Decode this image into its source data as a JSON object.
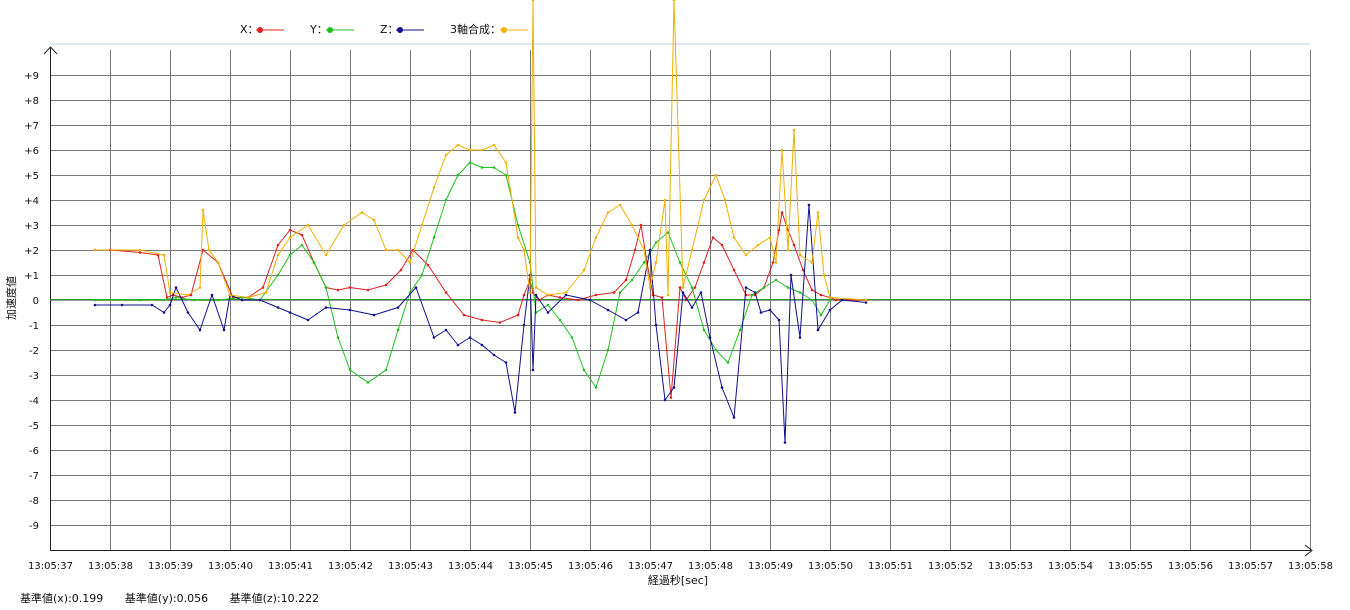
{
  "chart_data": {
    "type": "line",
    "xlabel": "経過秒[sec]",
    "ylabel": "加速度値",
    "x_tick_labels": [
      "13:05:37",
      "13:05:38",
      "13:05:39",
      "13:05:40",
      "13:05:41",
      "13:05:42",
      "13:05:43",
      "13:05:44",
      "13:05:45",
      "13:05:46",
      "13:05:47",
      "13:05:48",
      "13:05:49",
      "13:05:50",
      "13:05:51",
      "13:05:52",
      "13:05:53",
      "13:05:54",
      "13:05:55",
      "13:05:56",
      "13:05:57",
      "13:05:58"
    ],
    "y_tick_labels": [
      "+9",
      "+8",
      "+7",
      "+6",
      "+5",
      "+4",
      "+3",
      "+2",
      "+1",
      "0",
      "-1",
      "-2",
      "-3",
      "-4",
      "-5",
      "-6",
      "-7",
      "-8",
      "-9"
    ],
    "xlim": [
      0,
      21
    ],
    "ylim": [
      -10,
      10
    ],
    "grid": true,
    "legend_position": "top",
    "series": [
      {
        "name": "X",
        "legend_label": "X：",
        "color": "#e02020",
        "x": [
          0.75,
          1.0,
          1.5,
          1.8,
          1.95,
          2.05,
          2.2,
          2.35,
          2.55,
          2.8,
          3.05,
          3.3,
          3.55,
          3.8,
          4.0,
          4.2,
          4.4,
          4.6,
          4.8,
          5.0,
          5.3,
          5.6,
          5.85,
          6.05,
          6.3,
          6.6,
          6.9,
          7.2,
          7.5,
          7.8,
          7.9,
          8.0,
          8.05,
          8.15,
          8.3,
          8.5,
          8.8,
          9.1,
          9.4,
          9.6,
          9.75,
          9.85,
          9.95,
          10.05,
          10.2,
          10.35,
          10.5,
          10.6,
          10.75,
          10.9,
          11.05,
          11.2,
          11.4,
          11.6,
          11.75,
          11.9,
          12.05,
          12.15,
          12.2,
          12.3,
          12.4,
          12.55,
          12.7,
          12.85,
          13.0,
          13.1,
          13.3,
          13.6
        ],
        "y": [
          2.0,
          2.0,
          1.9,
          1.8,
          0.1,
          0.2,
          0.1,
          0.2,
          2.0,
          1.5,
          0.1,
          0.1,
          0.5,
          2.2,
          2.8,
          2.6,
          1.5,
          0.5,
          0.4,
          0.5,
          0.4,
          0.6,
          1.2,
          2.0,
          1.4,
          0.3,
          -0.6,
          -0.8,
          -0.9,
          -0.6,
          0.2,
          0.8,
          0.3,
          0.0,
          0.2,
          0.1,
          0.0,
          0.2,
          0.3,
          0.8,
          2.0,
          3.0,
          1.5,
          0.2,
          0.1,
          -3.9,
          0.5,
          0.0,
          0.5,
          1.5,
          2.5,
          2.2,
          1.2,
          0.2,
          0.2,
          0.5,
          1.5,
          2.8,
          3.5,
          2.8,
          2.2,
          1.2,
          0.4,
          0.2,
          0.1,
          0.0,
          0.0,
          0.0
        ]
      },
      {
        "name": "Y",
        "legend_label": "Y：",
        "color": "#20c020",
        "x": [
          0.75,
          1.5,
          1.9,
          2.1,
          2.4,
          2.8,
          3.2,
          3.5,
          3.8,
          4.0,
          4.2,
          4.4,
          4.6,
          4.8,
          5.0,
          5.3,
          5.6,
          5.8,
          6.0,
          6.2,
          6.4,
          6.6,
          6.8,
          7.0,
          7.2,
          7.4,
          7.6,
          7.8,
          8.0,
          8.1,
          8.3,
          8.5,
          8.7,
          8.9,
          9.1,
          9.3,
          9.5,
          9.7,
          9.9,
          10.1,
          10.3,
          10.5,
          10.7,
          10.9,
          11.1,
          11.3,
          11.5,
          11.7,
          11.9,
          12.1,
          12.3,
          12.5,
          12.7,
          12.85,
          13.0
        ],
        "y": [
          0.0,
          0.0,
          0.0,
          0.1,
          0.0,
          0.0,
          0.1,
          0.0,
          1.0,
          1.8,
          2.2,
          1.5,
          0.5,
          -1.5,
          -2.8,
          -3.3,
          -2.8,
          -1.2,
          0.3,
          1.0,
          2.5,
          4.0,
          5.0,
          5.5,
          5.3,
          5.3,
          5.0,
          3.0,
          1.5,
          -0.5,
          -0.2,
          -0.8,
          -1.5,
          -2.8,
          -3.5,
          -2.0,
          0.3,
          0.8,
          1.5,
          2.3,
          2.7,
          1.5,
          0.5,
          -1.2,
          -2.0,
          -2.5,
          -1.2,
          0.2,
          0.5,
          0.8,
          0.5,
          0.3,
          0.0,
          -0.6,
          0.0
        ]
      },
      {
        "name": "Z",
        "legend_label": "Z：",
        "color": "#101090",
        "x": [
          0.75,
          1.2,
          1.7,
          1.9,
          2.0,
          2.1,
          2.3,
          2.5,
          2.7,
          2.9,
          3.0,
          3.2,
          3.5,
          3.8,
          4.0,
          4.3,
          4.6,
          5.0,
          5.4,
          5.8,
          6.1,
          6.4,
          6.6,
          6.8,
          7.0,
          7.2,
          7.4,
          7.6,
          7.75,
          7.9,
          8.0,
          8.05,
          8.1,
          8.3,
          8.6,
          9.0,
          9.3,
          9.6,
          9.8,
          10.0,
          10.1,
          10.25,
          10.4,
          10.55,
          10.7,
          10.85,
          11.0,
          11.2,
          11.4,
          11.6,
          11.75,
          11.85,
          12.0,
          12.15,
          12.25,
          12.35,
          12.5,
          12.65,
          12.8,
          13.0,
          13.2,
          13.6
        ],
        "y": [
          -0.2,
          -0.2,
          -0.2,
          -0.5,
          -0.2,
          0.5,
          -0.5,
          -1.2,
          0.2,
          -1.2,
          0.2,
          0.0,
          0.0,
          -0.3,
          -0.5,
          -0.8,
          -0.3,
          -0.4,
          -0.6,
          -0.3,
          0.5,
          -1.5,
          -1.2,
          -1.8,
          -1.5,
          -1.8,
          -2.2,
          -2.5,
          -4.5,
          -1.0,
          1.0,
          -2.8,
          0.2,
          -0.5,
          0.2,
          0.0,
          -0.4,
          -0.8,
          -0.5,
          2.0,
          -1.0,
          -4.0,
          -3.5,
          0.3,
          -0.3,
          0.3,
          -1.5,
          -3.5,
          -4.7,
          0.5,
          0.3,
          -0.5,
          -0.4,
          -0.8,
          -5.7,
          1.0,
          -1.5,
          3.8,
          -1.2,
          -0.4,
          0.0,
          -0.1
        ]
      },
      {
        "name": "3軸合成",
        "legend_label": "3軸合成：",
        "color": "#f0b000",
        "x": [
          0.75,
          1.5,
          1.9,
          2.0,
          2.3,
          2.5,
          2.55,
          2.65,
          2.8,
          3.0,
          3.3,
          3.6,
          3.8,
          4.0,
          4.3,
          4.6,
          4.9,
          5.2,
          5.4,
          5.6,
          5.8,
          6.0,
          6.2,
          6.4,
          6.6,
          6.8,
          7.0,
          7.2,
          7.4,
          7.6,
          7.8,
          7.9,
          8.0,
          8.05,
          8.1,
          8.3,
          8.6,
          8.9,
          9.1,
          9.3,
          9.5,
          9.7,
          9.9,
          10.0,
          10.1,
          10.25,
          10.3,
          10.4,
          10.55,
          10.7,
          10.9,
          11.1,
          11.25,
          11.4,
          11.6,
          11.8,
          12.0,
          12.1,
          12.2,
          12.3,
          12.4,
          12.5,
          12.7,
          12.8,
          12.9,
          13.0,
          13.6
        ],
        "y": [
          2.0,
          2.0,
          1.8,
          0.3,
          0.2,
          0.5,
          3.6,
          2.0,
          1.5,
          0.2,
          0.1,
          0.3,
          1.8,
          2.5,
          3.0,
          1.8,
          3.0,
          3.5,
          3.2,
          2.0,
          2.0,
          1.5,
          3.0,
          4.5,
          5.8,
          6.2,
          6.0,
          6.0,
          6.2,
          5.5,
          2.5,
          2.0,
          0.3,
          12.0,
          0.5,
          0.2,
          0.3,
          1.2,
          2.5,
          3.5,
          3.8,
          3.0,
          2.0,
          0.5,
          1.5,
          4.0,
          0.2,
          12.0,
          0.5,
          2.0,
          4.0,
          5.0,
          4.0,
          2.5,
          1.8,
          2.2,
          2.5,
          1.5,
          6.0,
          2.0,
          6.8,
          1.8,
          1.5,
          3.5,
          1.0,
          0.1,
          0.0
        ]
      }
    ]
  },
  "baseline": {
    "x": "基準値(x):0.199",
    "y": "基準値(y):0.056",
    "z": "基準値(z):10.222"
  }
}
